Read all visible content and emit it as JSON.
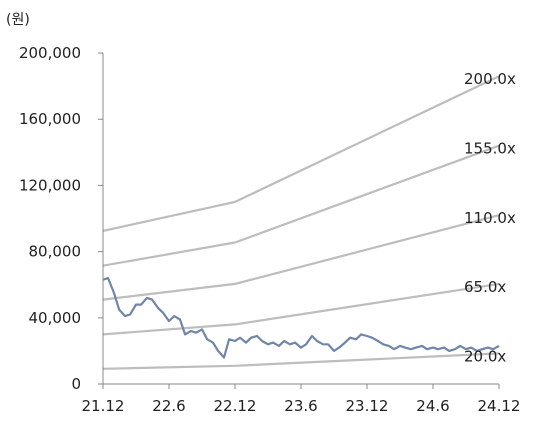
{
  "chart_data": {
    "type": "line",
    "unit_label": "(원)",
    "ylim": [
      0,
      200000
    ],
    "yticks": [
      0,
      40000,
      80000,
      120000,
      160000,
      200000
    ],
    "ytick_labels": [
      "0",
      "40,000",
      "80,000",
      "120,000",
      "160,000",
      "200,000"
    ],
    "xlim": [
      "2021-12",
      "2024-12"
    ],
    "xticks": [
      "2021-12",
      "2022-06",
      "2022-12",
      "2023-06",
      "2023-12",
      "2024-06",
      "2024-12"
    ],
    "xtick_labels": [
      "21.12",
      "22.6",
      "22.12",
      "23.6",
      "23.12",
      "24.6",
      "24.12"
    ],
    "grid": false,
    "colors": {
      "price": "#6f86a8",
      "bands": "#bdbdbd",
      "axis": "#888888"
    },
    "bands": [
      {
        "label": "200.0x",
        "points": [
          [
            "2021-12",
            92500
          ],
          [
            "2022-12",
            110000
          ],
          [
            "2024-12",
            186000
          ]
        ]
      },
      {
        "label": "155.0x",
        "points": [
          [
            "2021-12",
            71500
          ],
          [
            "2022-12",
            85500
          ],
          [
            "2024-12",
            144000
          ]
        ]
      },
      {
        "label": "110.0x",
        "points": [
          [
            "2021-12",
            51000
          ],
          [
            "2022-12",
            60500
          ],
          [
            "2024-12",
            102000
          ]
        ]
      },
      {
        "label": "65.0x",
        "points": [
          [
            "2021-12",
            30000
          ],
          [
            "2022-12",
            36000
          ],
          [
            "2024-12",
            60500
          ]
        ]
      },
      {
        "label": "20.0x",
        "points": [
          [
            "2021-12",
            9200
          ],
          [
            "2022-12",
            11000
          ],
          [
            "2024-12",
            18500
          ]
        ]
      }
    ],
    "price": [
      [
        "2021-12",
        63000
      ],
      [
        "2021-12-15",
        64000
      ],
      [
        "2022-01",
        55000
      ],
      [
        "2022-01-15",
        45000
      ],
      [
        "2022-02",
        41000
      ],
      [
        "2022-02-15",
        42000
      ],
      [
        "2022-03",
        48000
      ],
      [
        "2022-03-15",
        48000
      ],
      [
        "2022-04",
        52000
      ],
      [
        "2022-04-15",
        51000
      ],
      [
        "2022-05",
        46000
      ],
      [
        "2022-05-15",
        43000
      ],
      [
        "2022-06",
        38000
      ],
      [
        "2022-06-15",
        41000
      ],
      [
        "2022-07",
        39000
      ],
      [
        "2022-07-15",
        30000
      ],
      [
        "2022-08",
        32000
      ],
      [
        "2022-08-15",
        31000
      ],
      [
        "2022-09",
        33000
      ],
      [
        "2022-09-15",
        27000
      ],
      [
        "2022-10",
        25000
      ],
      [
        "2022-10-15",
        20000
      ],
      [
        "2022-11",
        16000
      ],
      [
        "2022-11-15",
        27000
      ],
      [
        "2022-12",
        26000
      ],
      [
        "2022-12-15",
        28000
      ],
      [
        "2023-01",
        25000
      ],
      [
        "2023-01-15",
        28000
      ],
      [
        "2023-02",
        29000
      ],
      [
        "2023-02-15",
        26000
      ],
      [
        "2023-03",
        24000
      ],
      [
        "2023-03-15",
        25000
      ],
      [
        "2023-04",
        23000
      ],
      [
        "2023-04-15",
        26000
      ],
      [
        "2023-05",
        24000
      ],
      [
        "2023-05-15",
        25000
      ],
      [
        "2023-06",
        22000
      ],
      [
        "2023-06-15",
        24000
      ],
      [
        "2023-07",
        29000
      ],
      [
        "2023-07-15",
        26000
      ],
      [
        "2023-08",
        24000
      ],
      [
        "2023-08-15",
        24000
      ],
      [
        "2023-09",
        20000
      ],
      [
        "2023-09-15",
        22000
      ],
      [
        "2023-10",
        25000
      ],
      [
        "2023-10-15",
        28000
      ],
      [
        "2023-11",
        27000
      ],
      [
        "2023-11-15",
        30000
      ],
      [
        "2023-12",
        29000
      ],
      [
        "2023-12-15",
        28000
      ],
      [
        "2024-01",
        26000
      ],
      [
        "2024-01-15",
        24000
      ],
      [
        "2024-02",
        23000
      ],
      [
        "2024-02-15",
        21000
      ],
      [
        "2024-03",
        23000
      ],
      [
        "2024-03-15",
        22000
      ],
      [
        "2024-04",
        21000
      ],
      [
        "2024-04-15",
        22000
      ],
      [
        "2024-05",
        23000
      ],
      [
        "2024-05-15",
        21000
      ],
      [
        "2024-06",
        22000
      ],
      [
        "2024-06-15",
        21000
      ],
      [
        "2024-07",
        22000
      ],
      [
        "2024-07-15",
        20000
      ],
      [
        "2024-08",
        21000
      ],
      [
        "2024-08-15",
        23000
      ],
      [
        "2024-09",
        21000
      ],
      [
        "2024-09-15",
        22000
      ],
      [
        "2024-10",
        20000
      ],
      [
        "2024-10-15",
        21000
      ],
      [
        "2024-11",
        22000
      ],
      [
        "2024-11-15",
        21000
      ],
      [
        "2024-12",
        23000
      ]
    ]
  }
}
